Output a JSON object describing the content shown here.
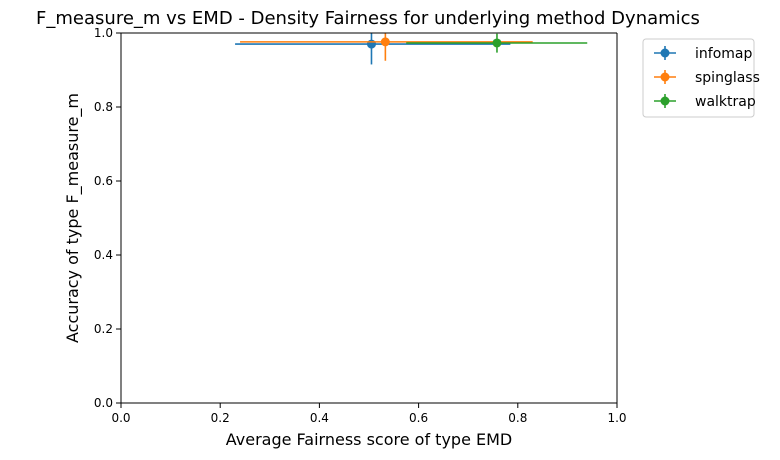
{
  "chart_data": {
    "type": "scatter",
    "title": "F_measure_m vs EMD - Density Fairness for underlying method Dynamics",
    "xlabel": "Average Fairness score of type EMD",
    "ylabel": "Accuracy of type F_measure_m",
    "xlim": [
      0.0,
      1.0
    ],
    "ylim": [
      0.0,
      1.0
    ],
    "xticks": [
      "0.0",
      "0.2",
      "0.4",
      "0.6",
      "0.8",
      "1.0"
    ],
    "yticks": [
      "0.0",
      "0.2",
      "0.4",
      "0.6",
      "0.8",
      "1.0"
    ],
    "grid": false,
    "legend_position": "outside-right-top",
    "series": [
      {
        "name": "infomap",
        "color": "#1f77b4",
        "x": 0.505,
        "y": 0.97,
        "x_err_low": 0.23,
        "x_err_high": 0.785,
        "y_err_low": 0.915,
        "y_err_high": 1.0
      },
      {
        "name": "spinglass",
        "color": "#ff7f0e",
        "x": 0.533,
        "y": 0.976,
        "x_err_low": 0.24,
        "x_err_high": 0.83,
        "y_err_low": 0.925,
        "y_err_high": 1.0
      },
      {
        "name": "walktrap",
        "color": "#2ca02c",
        "x": 0.758,
        "y": 0.973,
        "x_err_low": 0.575,
        "x_err_high": 0.94,
        "y_err_low": 0.947,
        "y_err_high": 0.998
      }
    ]
  }
}
